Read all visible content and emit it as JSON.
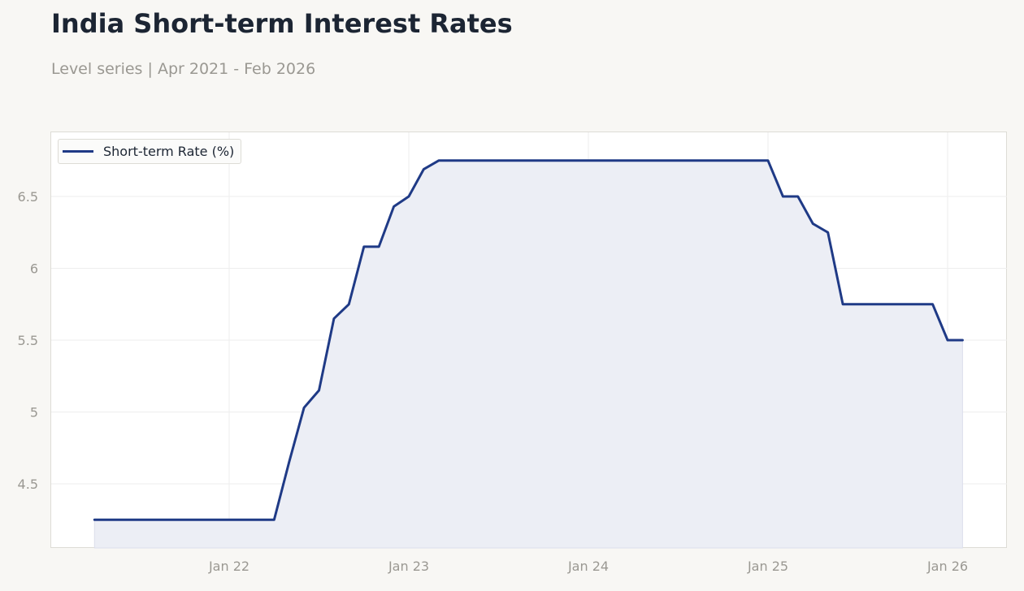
{
  "header": {
    "title": "India Short-term Interest Rates",
    "subtitle": "Level series | Apr 2021 - Feb 2026"
  },
  "colors": {
    "background": "#f8f7f4",
    "plot_background": "#ffffff",
    "line": "#1f3a86",
    "fill": "#eceef5",
    "grid": "#eeeeee",
    "tick_text": "#9a9892",
    "title": "#1c2533"
  },
  "chart_data": {
    "type": "area",
    "title": "India Short-term Interest Rates",
    "subtitle": "Level series | Apr 2021 - Feb 2026",
    "xlabel": "",
    "ylabel": "",
    "x_ticks": [
      "Jan 22",
      "Jan 23",
      "Jan 24",
      "Jan 25",
      "Jan 26"
    ],
    "y_ticks": [
      "4.5",
      "5",
      "5.5",
      "6",
      "6.5"
    ],
    "ylim": [
      4.05,
      6.95
    ],
    "xlim": [
      "2021-02",
      "2026-03"
    ],
    "grid": true,
    "legend_position": "top-left",
    "series": [
      {
        "name": "Short-term Rate (%)",
        "x": [
          "2021-04",
          "2021-05",
          "2021-06",
          "2021-07",
          "2021-08",
          "2021-09",
          "2021-10",
          "2021-11",
          "2021-12",
          "2022-01",
          "2022-02",
          "2022-03",
          "2022-04",
          "2022-05",
          "2022-06",
          "2022-07",
          "2022-08",
          "2022-09",
          "2022-10",
          "2022-11",
          "2022-12",
          "2023-01",
          "2023-02",
          "2023-03",
          "2023-04",
          "2023-05",
          "2023-06",
          "2023-07",
          "2023-08",
          "2023-09",
          "2023-10",
          "2023-11",
          "2023-12",
          "2024-01",
          "2024-02",
          "2024-03",
          "2024-04",
          "2024-05",
          "2024-06",
          "2024-07",
          "2024-08",
          "2024-09",
          "2024-10",
          "2024-11",
          "2024-12",
          "2025-01",
          "2025-02",
          "2025-03",
          "2025-04",
          "2025-05",
          "2025-06",
          "2025-07",
          "2025-08",
          "2025-09",
          "2025-10",
          "2025-11",
          "2025-12",
          "2026-01",
          "2026-02"
        ],
        "values": [
          4.25,
          4.25,
          4.25,
          4.25,
          4.25,
          4.25,
          4.25,
          4.25,
          4.25,
          4.25,
          4.25,
          4.25,
          4.25,
          4.65,
          5.03,
          5.15,
          5.65,
          5.75,
          6.15,
          6.15,
          6.43,
          6.5,
          6.69,
          6.75,
          6.75,
          6.75,
          6.75,
          6.75,
          6.75,
          6.75,
          6.75,
          6.75,
          6.75,
          6.75,
          6.75,
          6.75,
          6.75,
          6.75,
          6.75,
          6.75,
          6.75,
          6.75,
          6.75,
          6.75,
          6.75,
          6.75,
          6.5,
          6.5,
          6.31,
          6.25,
          5.75,
          5.75,
          5.75,
          5.75,
          5.75,
          5.75,
          5.75,
          5.5,
          5.5
        ]
      }
    ]
  }
}
